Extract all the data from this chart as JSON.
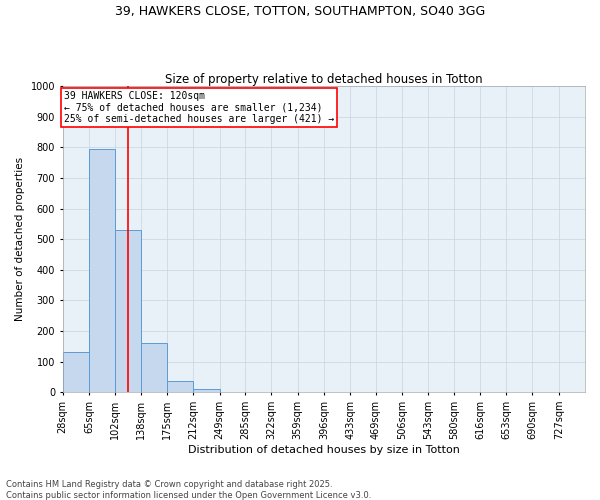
{
  "title_line1": "39, HAWKERS CLOSE, TOTTON, SOUTHAMPTON, SO40 3GG",
  "title_line2": "Size of property relative to detached houses in Totton",
  "xlabel": "Distribution of detached houses by size in Totton",
  "ylabel": "Number of detached properties",
  "bar_edges": [
    28,
    65,
    102,
    138,
    175,
    212,
    249,
    285,
    322,
    359,
    396,
    433,
    469,
    506,
    543,
    580,
    616,
    653,
    690,
    727,
    764
  ],
  "bar_heights": [
    133,
    795,
    530,
    160,
    37,
    12,
    0,
    0,
    0,
    0,
    0,
    0,
    0,
    0,
    0,
    0,
    0,
    0,
    0,
    0
  ],
  "bar_color": "#c5d8ed",
  "bar_edge_color": "#5b9bd5",
  "red_line_x": 120,
  "ylim": [
    0,
    1000
  ],
  "yticks": [
    0,
    100,
    200,
    300,
    400,
    500,
    600,
    700,
    800,
    900,
    1000
  ],
  "annotation_text": "39 HAWKERS CLOSE: 120sqm\n← 75% of detached houses are smaller (1,234)\n25% of semi-detached houses are larger (421) →",
  "footnote_line1": "Contains HM Land Registry data © Crown copyright and database right 2025.",
  "footnote_line2": "Contains public sector information licensed under the Open Government Licence v3.0.",
  "background_color": "#ffffff",
  "plot_bg_color": "#e8f0f8",
  "grid_color": "#c8d4e0",
  "title1_fontsize": 9,
  "title2_fontsize": 8.5,
  "ylabel_fontsize": 7.5,
  "xlabel_fontsize": 8,
  "annotation_fontsize": 7,
  "footnote_fontsize": 6,
  "tick_fontsize": 7
}
